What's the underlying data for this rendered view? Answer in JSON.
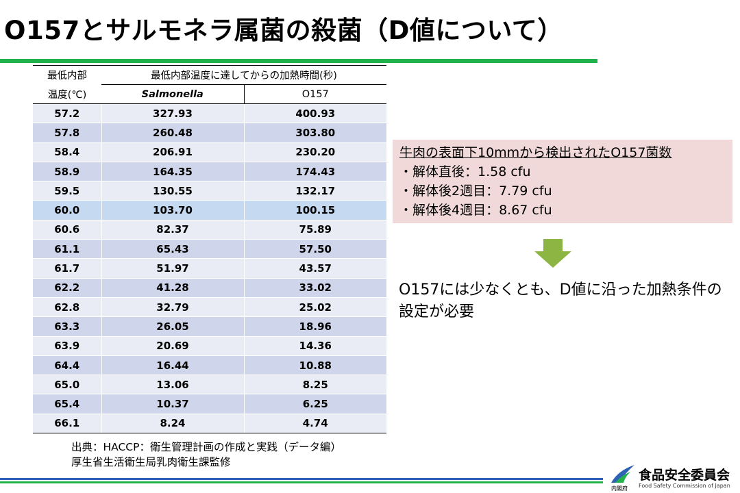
{
  "title": "O157とサルモネラ属菌の殺菌（D値について）",
  "colors": {
    "accent_green": "#22b24c",
    "accent_blue": "#2f62b5",
    "info_box": "#f1d9d9",
    "arrow": "#8db544",
    "row_highlight": "#c5d9f1"
  },
  "table": {
    "header": {
      "temp_line1": "最低内部",
      "temp_line2": "温度(℃)",
      "time_label": "最低内部温度に達してからの加熱時間(秒)",
      "col_salmonella": "Salmonella",
      "col_o157": "O157"
    },
    "rows": [
      {
        "temp": "57.2",
        "salmonella": "327.93",
        "o157": "400.93"
      },
      {
        "temp": "57.8",
        "salmonella": "260.48",
        "o157": "303.80"
      },
      {
        "temp": "58.4",
        "salmonella": "206.91",
        "o157": "230.20"
      },
      {
        "temp": "58.9",
        "salmonella": "164.35",
        "o157": "174.43"
      },
      {
        "temp": "59.5",
        "salmonella": "130.55",
        "o157": "132.17"
      },
      {
        "temp": "60.0",
        "salmonella": "103.70",
        "o157": "100.15"
      },
      {
        "temp": "60.6",
        "salmonella": "82.37",
        "o157": "75.89"
      },
      {
        "temp": "61.1",
        "salmonella": "65.43",
        "o157": "57.50"
      },
      {
        "temp": "61.7",
        "salmonella": "51.97",
        "o157": "43.57"
      },
      {
        "temp": "62.2",
        "salmonella": "41.28",
        "o157": "33.02"
      },
      {
        "temp": "62.8",
        "salmonella": "32.79",
        "o157": "25.02"
      },
      {
        "temp": "63.3",
        "salmonella": "26.05",
        "o157": "18.96"
      },
      {
        "temp": "63.9",
        "salmonella": "20.69",
        "o157": "14.36"
      },
      {
        "temp": "64.4",
        "salmonella": "16.44",
        "o157": "10.88"
      },
      {
        "temp": "65.0",
        "salmonella": "13.06",
        "o157": "8.25"
      },
      {
        "temp": "65.4",
        "salmonella": "10.37",
        "o157": "6.25"
      },
      {
        "temp": "66.1",
        "salmonella": "8.24",
        "o157": "4.74"
      }
    ]
  },
  "source": {
    "line1": "出典：HACCP：衛生管理計画の作成と実践（データ編）",
    "line2": "厚生省生活衛生局乳肉衛生課監修"
  },
  "info_box": {
    "title": "牛肉の表面下10mmから検出されたO157菌数",
    "items": [
      "・解体直後：1.58 cfu",
      "・解体後2週目：7.79 cfu",
      "・解体後4週目：8.67 cfu"
    ]
  },
  "conclusion": "O157には少なくとも、D値に沿った加熱条件の設定が必要",
  "logo": {
    "name_jp": "食品安全委員会",
    "name_en": "Food Safety Commission of Japan",
    "sub": "内閣府"
  }
}
